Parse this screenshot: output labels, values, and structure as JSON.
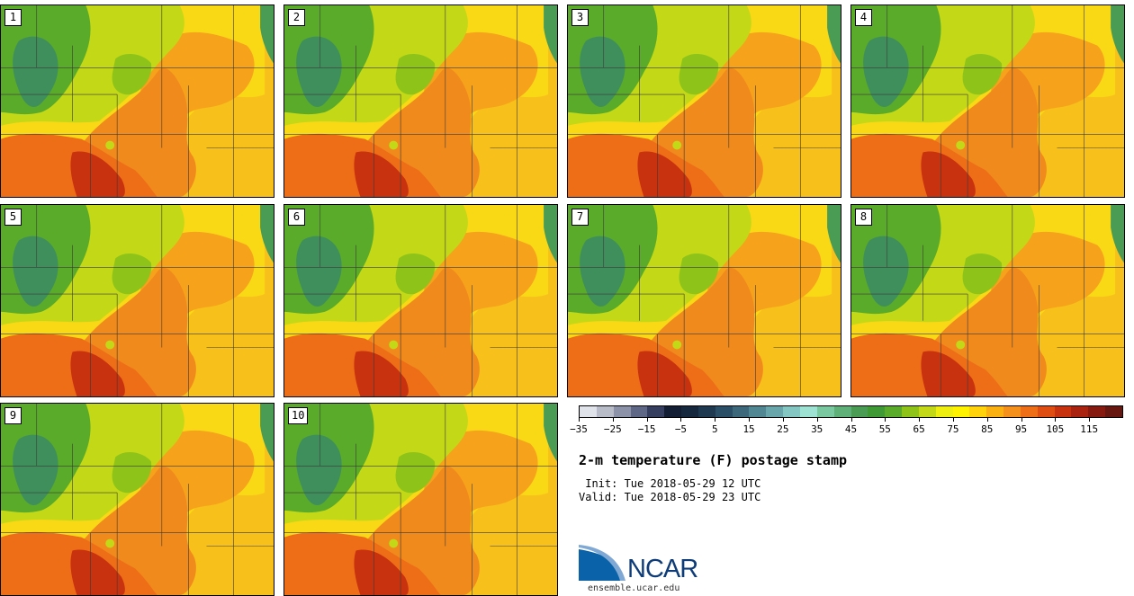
{
  "panels": [
    {
      "label": "1"
    },
    {
      "label": "2"
    },
    {
      "label": "3"
    },
    {
      "label": "4"
    },
    {
      "label": "5"
    },
    {
      "label": "6"
    },
    {
      "label": "7"
    },
    {
      "label": "8"
    },
    {
      "label": "9"
    },
    {
      "label": "10"
    }
  ],
  "colorbar": {
    "colors": [
      "#e1e3ea",
      "#b8bcc8",
      "#8c93a8",
      "#5e6786",
      "#353e5e",
      "#131d33",
      "#16283e",
      "#1f3a50",
      "#2b4f66",
      "#3d687c",
      "#518693",
      "#69a6ac",
      "#84c6c2",
      "#9ee2d3",
      "#79c8a0",
      "#5fb078",
      "#4a9c55",
      "#3f9a36",
      "#5aab2a",
      "#8ec31a",
      "#c3d816",
      "#eeee10",
      "#fff200",
      "#ffd20c",
      "#fbb012",
      "#f5901c",
      "#ee6e18",
      "#df4d12",
      "#c8320e",
      "#aa2311",
      "#871a10",
      "#671610"
    ],
    "tick_labels": [
      "−35",
      "−25",
      "−15",
      "−5",
      "5",
      "15",
      "25",
      "35",
      "45",
      "55",
      "65",
      "75",
      "85",
      "95",
      "105",
      "115"
    ]
  },
  "title": "2-m temperature (F) postage stamp",
  "init_text": " Init: Tue 2018-05-29 12 UTC",
  "valid_text": "Valid: Tue 2018-05-29 23 UTC",
  "logo": {
    "name": "NCAR",
    "url": "ensemble.ucar.edu"
  }
}
